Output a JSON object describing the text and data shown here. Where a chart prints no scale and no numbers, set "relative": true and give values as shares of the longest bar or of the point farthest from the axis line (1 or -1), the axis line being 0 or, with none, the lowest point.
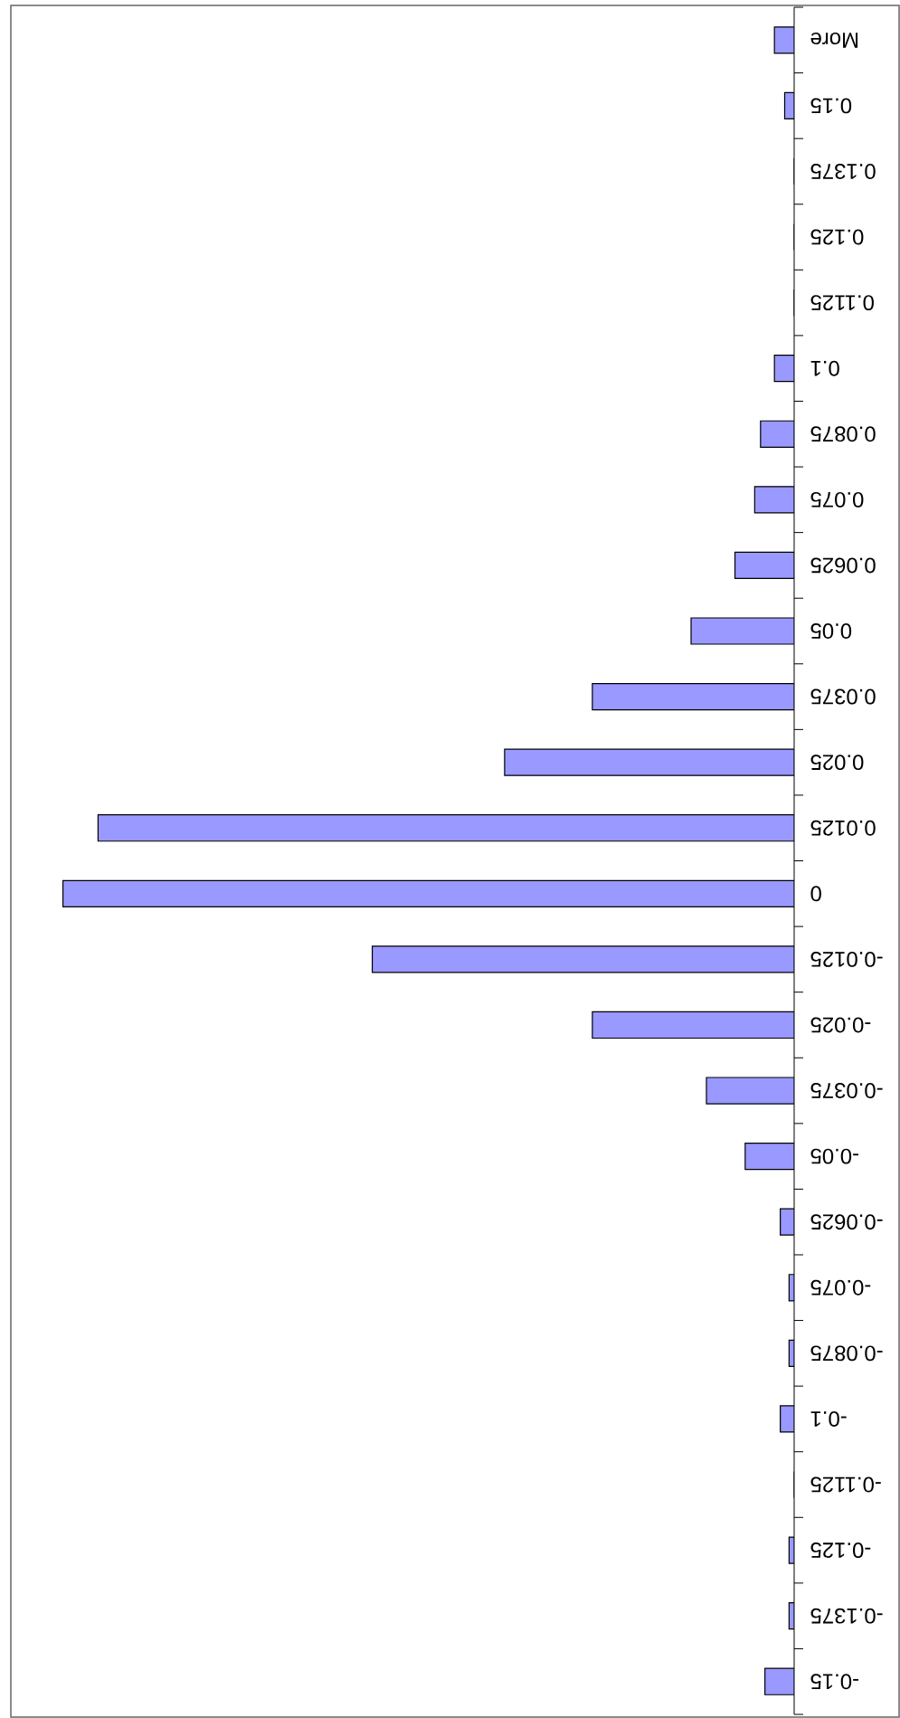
{
  "chart_data": {
    "type": "bar",
    "orientation": "horizontal",
    "relative": true,
    "color": "#9999ff",
    "categories": [
      "More",
      "0.15",
      "0.1375",
      "0.125",
      "0.1125",
      "0.1",
      "0.0875",
      "0.075",
      "0.0625",
      "0.05",
      "0.0375",
      "0.025",
      "0.0125",
      "0",
      "-0.0125",
      "-0.025",
      "-0.0375",
      "-0.05",
      "-0.0625",
      "-0.075",
      "-0.0875",
      "-0.1",
      "-0.1125",
      "-0.125",
      "-0.1375",
      "-0.15"
    ],
    "values": [
      0.027,
      0.013,
      0,
      0,
      0,
      0.027,
      0.046,
      0.054,
      0.081,
      0.141,
      0.276,
      0.396,
      0.952,
      1,
      0.577,
      0.276,
      0.12,
      0.067,
      0.019,
      0.007,
      0.007,
      0.019,
      0,
      0.007,
      0.007,
      0.04
    ]
  }
}
